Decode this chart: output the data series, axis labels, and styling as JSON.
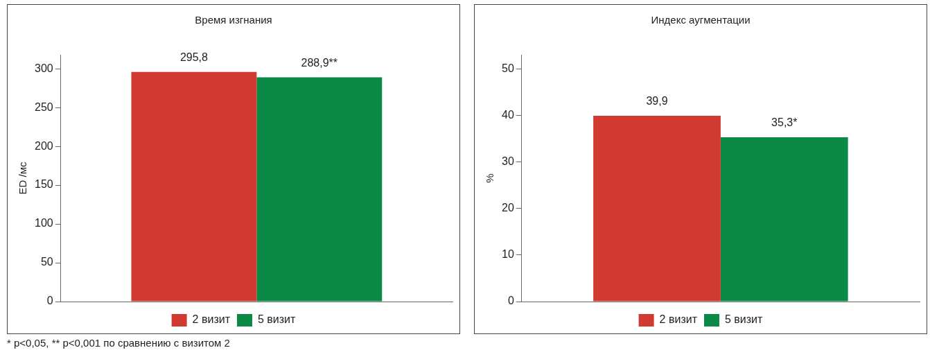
{
  "chart_data": [
    {
      "type": "bar",
      "title": "Время изгнания",
      "ylabel": "ED /мс",
      "categories": [
        null
      ],
      "series": [
        {
          "name": "2 визит",
          "color": "#d13a30",
          "values": [
            295.8
          ],
          "value_labels": [
            "295,8"
          ]
        },
        {
          "name": "5 визит",
          "color": "#0a8a45",
          "values": [
            288.9
          ],
          "value_labels": [
            "288,9**"
          ]
        }
      ],
      "ylim": [
        0,
        318
      ],
      "yticks": [
        0,
        50,
        100,
        150,
        200,
        250,
        300
      ],
      "grid": false,
      "legend": "bottom",
      "tick_labels": "y",
      "annotations": [
        "* p<0,05, ** p<0,001 по сравнению с визитом 2"
      ]
    },
    {
      "type": "bar",
      "title": "Индекс аугментации",
      "ylabel": "%",
      "categories": [
        null
      ],
      "series": [
        {
          "name": "2 визит",
          "color": "#d13a30",
          "values": [
            39.9
          ],
          "value_labels": [
            "39,9"
          ]
        },
        {
          "name": "5 визит",
          "color": "#0a8a45",
          "values": [
            35.3
          ],
          "value_labels": [
            "35,3*"
          ]
        }
      ],
      "ylim": [
        0,
        53
      ],
      "yticks": [
        0,
        10,
        20,
        30,
        40,
        50
      ],
      "grid": false,
      "legend": "bottom",
      "tick_labels": "y"
    }
  ]
}
